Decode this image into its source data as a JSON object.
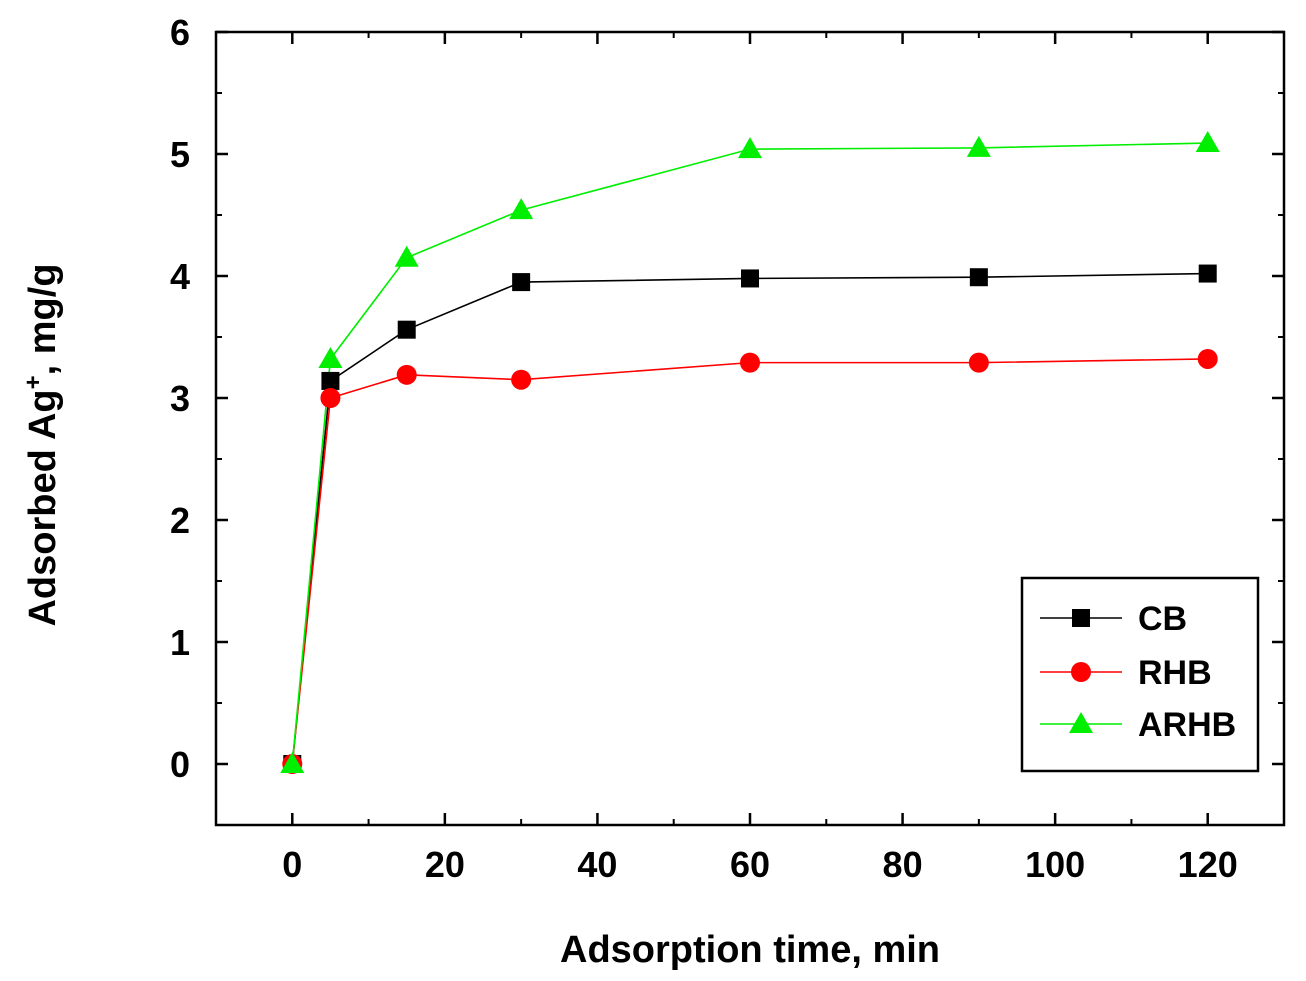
{
  "chart_data": {
    "type": "line",
    "title": "",
    "xlabel": "Adsorption time, min",
    "ylabel": {
      "main": "Adsorbed Ag",
      "superscript": "+",
      "suffix": ", mg/g"
    },
    "xlim": [
      -10,
      130
    ],
    "ylim": [
      -0.5,
      6
    ],
    "x_ticks": [
      0,
      20,
      40,
      60,
      80,
      100,
      120
    ],
    "y_ticks": [
      0,
      1,
      2,
      3,
      4,
      5,
      6
    ],
    "x_tick_labels": [
      "0",
      "20",
      "40",
      "60",
      "80",
      "100",
      "120"
    ],
    "y_tick_labels": [
      "0",
      "1",
      "2",
      "3",
      "4",
      "5",
      "6"
    ],
    "legend_position": "bottom-right",
    "x": [
      0,
      5,
      15,
      30,
      60,
      90,
      120
    ],
    "series": [
      {
        "name": "CB",
        "color": "#000000",
        "marker": "square",
        "values": [
          0,
          3.14,
          3.56,
          3.95,
          3.98,
          3.99,
          4.02
        ]
      },
      {
        "name": "RHB",
        "color": "#ff0000",
        "marker": "circle",
        "values": [
          0,
          3.0,
          3.19,
          3.15,
          3.29,
          3.29,
          3.32
        ]
      },
      {
        "name": "ARHB",
        "color": "#00ee00",
        "marker": "triangle",
        "values": [
          0,
          3.32,
          4.15,
          4.54,
          5.04,
          5.05,
          5.09
        ]
      }
    ]
  }
}
